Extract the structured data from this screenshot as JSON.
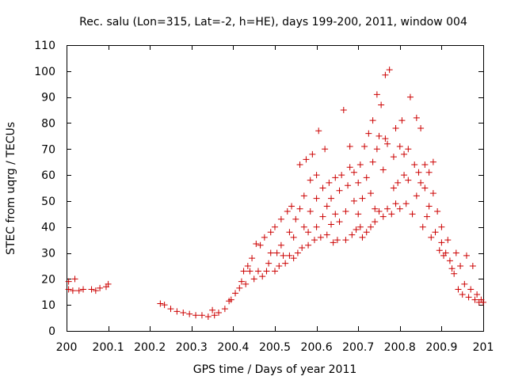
{
  "chart_data": {
    "type": "scatter",
    "title": "Rec. salu (Lon=315, Lat=-2, h=HE), days 199-200, 2011, window 004",
    "xlabel": "GPS time / Days of year 2011",
    "ylabel": "STEC from uqrg / TECUs",
    "xlim": [
      200,
      201
    ],
    "ylim": [
      0,
      110
    ],
    "x_ticks": [
      200,
      200.1,
      200.2,
      200.3,
      200.4,
      200.5,
      200.6,
      200.7,
      200.8,
      200.9,
      201
    ],
    "y_ticks": [
      0,
      10,
      20,
      30,
      40,
      50,
      60,
      70,
      80,
      90,
      100,
      110
    ],
    "marker": "+",
    "color": "#cc0000",
    "grid": false,
    "series": [
      {
        "name": "STEC",
        "points": [
          [
            200.005,
            16
          ],
          [
            200.005,
            19
          ],
          [
            200.015,
            15.5
          ],
          [
            200.02,
            20
          ],
          [
            200.03,
            15.5
          ],
          [
            200.04,
            16
          ],
          [
            200.06,
            16
          ],
          [
            200.07,
            15.5
          ],
          [
            200.08,
            16.5
          ],
          [
            200.095,
            17
          ],
          [
            200.1,
            18
          ],
          [
            200.225,
            10.5
          ],
          [
            200.235,
            10
          ],
          [
            200.25,
            8.5
          ],
          [
            200.265,
            7.5
          ],
          [
            200.28,
            7
          ],
          [
            200.295,
            6.5
          ],
          [
            200.31,
            6
          ],
          [
            200.325,
            6
          ],
          [
            200.34,
            5.5
          ],
          [
            200.35,
            8
          ],
          [
            200.355,
            6
          ],
          [
            200.365,
            7
          ],
          [
            200.38,
            8.5
          ],
          [
            200.39,
            11.5
          ],
          [
            200.395,
            12
          ],
          [
            200.405,
            14.5
          ],
          [
            200.415,
            16.5
          ],
          [
            200.42,
            19
          ],
          [
            200.425,
            23
          ],
          [
            200.43,
            18
          ],
          [
            200.435,
            25
          ],
          [
            200.44,
            23
          ],
          [
            200.445,
            28
          ],
          [
            200.45,
            20
          ],
          [
            200.455,
            33.5
          ],
          [
            200.46,
            23
          ],
          [
            200.465,
            33
          ],
          [
            200.47,
            21
          ],
          [
            200.475,
            36
          ],
          [
            200.48,
            23
          ],
          [
            200.485,
            26
          ],
          [
            200.49,
            30
          ],
          [
            200.49,
            38
          ],
          [
            200.5,
            23
          ],
          [
            200.5,
            40
          ],
          [
            200.505,
            30
          ],
          [
            200.51,
            25
          ],
          [
            200.515,
            33
          ],
          [
            200.515,
            43
          ],
          [
            200.52,
            29
          ],
          [
            200.525,
            26
          ],
          [
            200.53,
            46
          ],
          [
            200.535,
            29
          ],
          [
            200.535,
            38
          ],
          [
            200.54,
            48
          ],
          [
            200.545,
            28
          ],
          [
            200.545,
            36
          ],
          [
            200.55,
            43
          ],
          [
            200.555,
            30
          ],
          [
            200.56,
            47
          ],
          [
            200.56,
            64
          ],
          [
            200.565,
            32
          ],
          [
            200.57,
            40
          ],
          [
            200.57,
            52
          ],
          [
            200.575,
            66
          ],
          [
            200.58,
            33
          ],
          [
            200.58,
            38
          ],
          [
            200.585,
            46
          ],
          [
            200.585,
            58
          ],
          [
            200.59,
            68
          ],
          [
            200.595,
            35
          ],
          [
            200.6,
            40
          ],
          [
            200.6,
            51
          ],
          [
            200.6,
            60
          ],
          [
            200.605,
            77
          ],
          [
            200.61,
            36
          ],
          [
            200.615,
            44
          ],
          [
            200.615,
            55
          ],
          [
            200.62,
            70
          ],
          [
            200.625,
            37
          ],
          [
            200.625,
            48
          ],
          [
            200.63,
            57
          ],
          [
            200.635,
            41
          ],
          [
            200.635,
            51
          ],
          [
            200.64,
            34
          ],
          [
            200.645,
            45
          ],
          [
            200.645,
            59
          ],
          [
            200.65,
            35
          ],
          [
            200.655,
            42
          ],
          [
            200.655,
            54
          ],
          [
            200.66,
            60
          ],
          [
            200.665,
            85
          ],
          [
            200.67,
            35
          ],
          [
            200.67,
            46
          ],
          [
            200.675,
            56
          ],
          [
            200.68,
            63
          ],
          [
            200.68,
            71
          ],
          [
            200.685,
            37
          ],
          [
            200.69,
            50
          ],
          [
            200.69,
            61
          ],
          [
            200.695,
            39
          ],
          [
            200.7,
            45
          ],
          [
            200.7,
            57
          ],
          [
            200.705,
            40
          ],
          [
            200.705,
            64
          ],
          [
            200.71,
            36
          ],
          [
            200.71,
            51
          ],
          [
            200.715,
            71
          ],
          [
            200.72,
            38
          ],
          [
            200.72,
            59
          ],
          [
            200.725,
            76
          ],
          [
            200.73,
            40
          ],
          [
            200.73,
            53
          ],
          [
            200.735,
            65
          ],
          [
            200.735,
            81
          ],
          [
            200.74,
            42
          ],
          [
            200.74,
            47
          ],
          [
            200.745,
            70
          ],
          [
            200.745,
            91
          ],
          [
            200.75,
            46
          ],
          [
            200.75,
            75
          ],
          [
            200.755,
            87
          ],
          [
            200.76,
            44
          ],
          [
            200.76,
            62
          ],
          [
            200.765,
            74
          ],
          [
            200.765,
            98.5
          ],
          [
            200.77,
            47
          ],
          [
            200.77,
            72
          ],
          [
            200.775,
            100.5
          ],
          [
            200.78,
            45
          ],
          [
            200.785,
            55
          ],
          [
            200.785,
            67
          ],
          [
            200.79,
            49
          ],
          [
            200.79,
            78
          ],
          [
            200.795,
            57
          ],
          [
            200.8,
            47
          ],
          [
            200.8,
            71
          ],
          [
            200.805,
            81
          ],
          [
            200.81,
            60
          ],
          [
            200.81,
            68
          ],
          [
            200.815,
            49
          ],
          [
            200.82,
            58
          ],
          [
            200.82,
            70
          ],
          [
            200.825,
            90
          ],
          [
            200.83,
            45
          ],
          [
            200.835,
            64
          ],
          [
            200.84,
            52
          ],
          [
            200.84,
            82
          ],
          [
            200.845,
            61
          ],
          [
            200.85,
            57
          ],
          [
            200.85,
            78
          ],
          [
            200.855,
            40
          ],
          [
            200.86,
            55
          ],
          [
            200.86,
            64
          ],
          [
            200.865,
            44
          ],
          [
            200.87,
            48
          ],
          [
            200.87,
            61
          ],
          [
            200.875,
            36
          ],
          [
            200.88,
            53
          ],
          [
            200.88,
            65
          ],
          [
            200.885,
            38
          ],
          [
            200.89,
            46
          ],
          [
            200.895,
            31
          ],
          [
            200.9,
            34
          ],
          [
            200.9,
            40
          ],
          [
            200.905,
            29
          ],
          [
            200.91,
            30
          ],
          [
            200.915,
            35
          ],
          [
            200.92,
            27
          ],
          [
            200.925,
            24
          ],
          [
            200.93,
            22
          ],
          [
            200.935,
            30
          ],
          [
            200.94,
            16
          ],
          [
            200.945,
            25
          ],
          [
            200.95,
            14
          ],
          [
            200.955,
            18
          ],
          [
            200.96,
            29
          ],
          [
            200.965,
            13
          ],
          [
            200.97,
            16
          ],
          [
            200.975,
            25
          ],
          [
            200.98,
            12
          ],
          [
            200.985,
            14
          ],
          [
            200.99,
            11
          ],
          [
            200.995,
            12
          ],
          [
            201.0,
            11
          ]
        ]
      }
    ]
  }
}
